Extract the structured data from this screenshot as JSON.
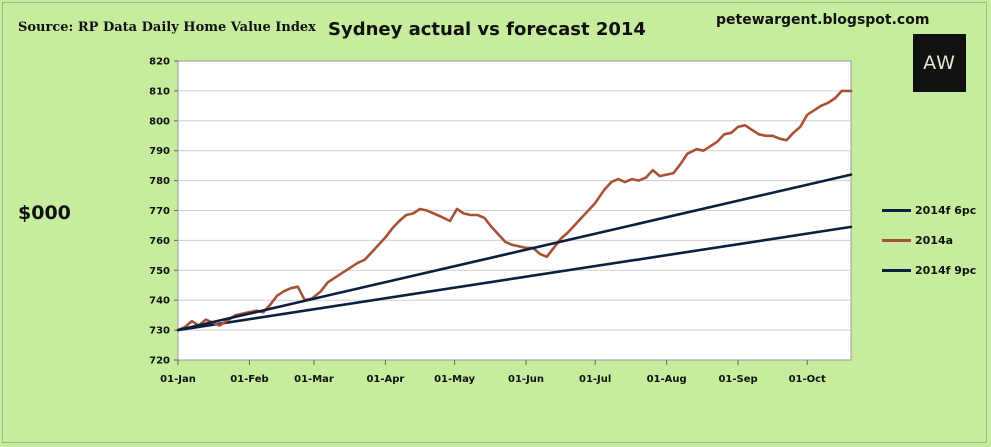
{
  "source_label": "Source: RP Data Daily Home Value Index",
  "blog_label": "petewargent.blogspot.com",
  "logo_text": "AW",
  "unit_label": "$000",
  "colors": {
    "background": "#c6ec9e",
    "plot_background": "#ffffff",
    "forecast_line": "#0b1f3f",
    "actual_line": "#a85235",
    "grid": "#cfcfcf"
  },
  "chart_data": {
    "type": "line",
    "title": "Sydney actual vs forecast 2014",
    "xlabel": "",
    "ylabel": "$000",
    "ylim": [
      720,
      820
    ],
    "ytick_step": 10,
    "grid": "horizontal",
    "legend_position": "right",
    "x_domain": [
      "2014-01-01",
      "2014-10-20"
    ],
    "x_ticks": [
      {
        "date": "2014-01-01",
        "label": "01-Jan"
      },
      {
        "date": "2014-02-01",
        "label": "01-Feb"
      },
      {
        "date": "2014-03-01",
        "label": "01-Mar"
      },
      {
        "date": "2014-04-01",
        "label": "01-Apr"
      },
      {
        "date": "2014-05-01",
        "label": "01-May"
      },
      {
        "date": "2014-06-01",
        "label": "01-Jun"
      },
      {
        "date": "2014-07-01",
        "label": "01-Jul"
      },
      {
        "date": "2014-08-01",
        "label": "01-Aug"
      },
      {
        "date": "2014-09-01",
        "label": "01-Sep"
      },
      {
        "date": "2014-10-01",
        "label": "01-Oct"
      }
    ],
    "series": [
      {
        "name": "2014f 6pc",
        "color": "#0b1f3f",
        "points": [
          [
            "2014-01-01",
            730
          ],
          [
            "2014-10-20",
            764.5
          ]
        ]
      },
      {
        "name": "2014a",
        "color": "#a85235",
        "points": [
          [
            "2014-01-01",
            730.0
          ],
          [
            "2014-01-04",
            731.0
          ],
          [
            "2014-01-07",
            733.0
          ],
          [
            "2014-01-10",
            731.5
          ],
          [
            "2014-01-13",
            733.5
          ],
          [
            "2014-01-16",
            732.5
          ],
          [
            "2014-01-19",
            731.5
          ],
          [
            "2014-01-23",
            733.5
          ],
          [
            "2014-01-26",
            735.0
          ],
          [
            "2014-01-29",
            735.5
          ],
          [
            "2014-02-01",
            736.0
          ],
          [
            "2014-02-04",
            736.5
          ],
          [
            "2014-02-07",
            736.0
          ],
          [
            "2014-02-10",
            738.5
          ],
          [
            "2014-02-13",
            741.5
          ],
          [
            "2014-02-16",
            743.0
          ],
          [
            "2014-02-19",
            744.0
          ],
          [
            "2014-02-22",
            744.5
          ],
          [
            "2014-02-25",
            740.0
          ],
          [
            "2014-02-28",
            740.5
          ],
          [
            "2014-03-04",
            743.0
          ],
          [
            "2014-03-07",
            746.0
          ],
          [
            "2014-03-10",
            747.5
          ],
          [
            "2014-03-13",
            749.0
          ],
          [
            "2014-03-16",
            750.5
          ],
          [
            "2014-03-20",
            752.5
          ],
          [
            "2014-03-23",
            753.5
          ],
          [
            "2014-03-26",
            756.0
          ],
          [
            "2014-03-29",
            758.5
          ],
          [
            "2014-04-01",
            761.0
          ],
          [
            "2014-04-04",
            764.0
          ],
          [
            "2014-04-07",
            766.5
          ],
          [
            "2014-04-10",
            768.5
          ],
          [
            "2014-04-13",
            769.0
          ],
          [
            "2014-04-16",
            770.5
          ],
          [
            "2014-04-19",
            770.0
          ],
          [
            "2014-04-22",
            769.0
          ],
          [
            "2014-04-25",
            768.0
          ],
          [
            "2014-04-29",
            766.5
          ],
          [
            "2014-05-02",
            770.5
          ],
          [
            "2014-05-05",
            769.0
          ],
          [
            "2014-05-08",
            768.5
          ],
          [
            "2014-05-11",
            768.5
          ],
          [
            "2014-05-14",
            767.5
          ],
          [
            "2014-05-17",
            764.5
          ],
          [
            "2014-05-20",
            762.0
          ],
          [
            "2014-05-23",
            759.5
          ],
          [
            "2014-05-26",
            758.5
          ],
          [
            "2014-05-29",
            758.0
          ],
          [
            "2014-06-01",
            757.5
          ],
          [
            "2014-06-04",
            757.5
          ],
          [
            "2014-06-07",
            755.5
          ],
          [
            "2014-06-10",
            754.5
          ],
          [
            "2014-06-13",
            757.5
          ],
          [
            "2014-06-16",
            760.5
          ],
          [
            "2014-06-19",
            762.5
          ],
          [
            "2014-06-22",
            765.0
          ],
          [
            "2014-06-25",
            767.5
          ],
          [
            "2014-06-28",
            770.0
          ],
          [
            "2014-07-01",
            772.5
          ],
          [
            "2014-07-05",
            777.0
          ],
          [
            "2014-07-08",
            779.5
          ],
          [
            "2014-07-11",
            780.5
          ],
          [
            "2014-07-14",
            779.5
          ],
          [
            "2014-07-17",
            780.5
          ],
          [
            "2014-07-20",
            780.0
          ],
          [
            "2014-07-23",
            781.0
          ],
          [
            "2014-07-26",
            783.5
          ],
          [
            "2014-07-29",
            781.5
          ],
          [
            "2014-08-01",
            782.0
          ],
          [
            "2014-08-04",
            782.5
          ],
          [
            "2014-08-07",
            785.5
          ],
          [
            "2014-08-10",
            789.0
          ],
          [
            "2014-08-14",
            790.5
          ],
          [
            "2014-08-17",
            790.0
          ],
          [
            "2014-08-20",
            791.5
          ],
          [
            "2014-08-23",
            793.0
          ],
          [
            "2014-08-26",
            795.5
          ],
          [
            "2014-08-29",
            796.0
          ],
          [
            "2014-09-01",
            798.0
          ],
          [
            "2014-09-04",
            798.5
          ],
          [
            "2014-09-07",
            797.0
          ],
          [
            "2014-09-10",
            795.5
          ],
          [
            "2014-09-13",
            795.0
          ],
          [
            "2014-09-16",
            795.0
          ],
          [
            "2014-09-19",
            794.0
          ],
          [
            "2014-09-22",
            793.5
          ],
          [
            "2014-09-25",
            796.0
          ],
          [
            "2014-09-28",
            798.0
          ],
          [
            "2014-10-01",
            802.0
          ],
          [
            "2014-10-04",
            803.5
          ],
          [
            "2014-10-07",
            805.0
          ],
          [
            "2014-10-10",
            806.0
          ],
          [
            "2014-10-13",
            807.5
          ],
          [
            "2014-10-16",
            810.0
          ],
          [
            "2014-10-20",
            810.0
          ]
        ]
      },
      {
        "name": "2014f 9pc",
        "color": "#0b1f3f",
        "points": [
          [
            "2014-01-01",
            730
          ],
          [
            "2014-10-20",
            782
          ]
        ]
      }
    ]
  }
}
